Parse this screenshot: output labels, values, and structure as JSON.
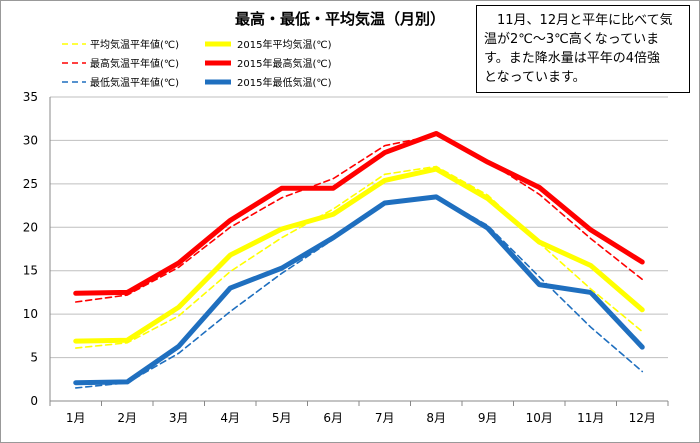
{
  "chart_data": {
    "type": "line",
    "title": "最高・最低・平均気温（月別）",
    "categories": [
      "1月",
      "2月",
      "3月",
      "4月",
      "5月",
      "6月",
      "7月",
      "8月",
      "9月",
      "10月",
      "11月",
      "12月"
    ],
    "ylim": [
      0,
      35
    ],
    "yticks": [
      0,
      5,
      10,
      15,
      20,
      25,
      30,
      35
    ],
    "grid": true,
    "legend_position": "top-left",
    "series": [
      {
        "name": "平均気温平年値(℃)",
        "style": "dashed",
        "color": "#ffff00",
        "values": [
          6.1,
          6.7,
          9.8,
          14.9,
          18.8,
          22.1,
          26.1,
          27.0,
          23.7,
          18.2,
          12.9,
          8.0
        ]
      },
      {
        "name": "2015年平均気温(℃)",
        "style": "solid",
        "color": "#ffff00",
        "values": [
          6.9,
          7.0,
          10.8,
          16.8,
          19.8,
          21.5,
          25.4,
          26.7,
          23.3,
          18.3,
          15.6,
          10.5
        ]
      },
      {
        "name": "最高気温平年値(℃)",
        "style": "dashed",
        "color": "#ff0000",
        "values": [
          11.4,
          12.2,
          15.4,
          20.0,
          23.4,
          25.6,
          29.4,
          30.6,
          27.6,
          23.8,
          18.7,
          14.0
        ]
      },
      {
        "name": "2015年最高気温(℃)",
        "style": "solid",
        "color": "#ff0000",
        "values": [
          12.4,
          12.5,
          15.9,
          20.8,
          24.5,
          24.5,
          28.6,
          30.8,
          27.5,
          24.6,
          19.7,
          16.0
        ]
      },
      {
        "name": "最低気温平年値(℃)",
        "style": "dashed",
        "color": "#1f6fbf",
        "values": [
          1.5,
          2.1,
          5.5,
          10.3,
          14.7,
          18.6,
          22.8,
          23.6,
          20.2,
          14.3,
          8.5,
          3.4
        ]
      },
      {
        "name": "2015年最低気温(℃)",
        "style": "solid",
        "color": "#1f6fbf",
        "values": [
          2.1,
          2.2,
          6.3,
          13.0,
          15.3,
          18.8,
          22.8,
          23.5,
          19.9,
          13.4,
          12.5,
          6.2
        ]
      }
    ]
  },
  "note": {
    "lines": [
      "　11月、12月と平年に比べて気",
      "温が2℃〜3℃高くなっていま",
      "す。また降水量は平年の4倍強",
      "となっています。"
    ]
  }
}
